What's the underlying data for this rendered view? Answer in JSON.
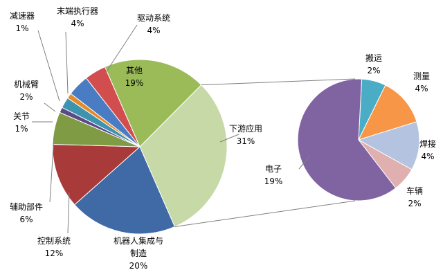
{
  "chart_data": [
    {
      "type": "pie",
      "slices": [
        {
          "label": "下游应用",
          "value": 31,
          "value_label": "31%",
          "color": "#C6D9A7"
        },
        {
          "label": "机器人集成与制造",
          "value": 20,
          "value_label": "20%",
          "color": "#3F6AA6"
        },
        {
          "label": "控制系统",
          "value": 12,
          "value_label": "12%",
          "color": "#A83A3A"
        },
        {
          "label": "辅助部件",
          "value": 6,
          "value_label": "6%",
          "color": "#7F9C45"
        },
        {
          "label": "关节",
          "value": 1,
          "value_label": "1%",
          "color": "#5B4A86"
        },
        {
          "label": "机械臂",
          "value": 2,
          "value_label": "2%",
          "color": "#3E94AE"
        },
        {
          "label": "减速器",
          "value": 1,
          "value_label": "1%",
          "color": "#E38C2C"
        },
        {
          "label": "末端执行器",
          "value": 4,
          "value_label": "4%",
          "color": "#4A7CC4"
        },
        {
          "label": "驱动系统",
          "value": 4,
          "value_label": "4%",
          "color": "#D24E4E"
        },
        {
          "label": "其他",
          "value": 19,
          "value_label": "19%",
          "color": "#9BBB59"
        }
      ]
    },
    {
      "type": "pie",
      "slices": [
        {
          "label": "搬运",
          "value": 2,
          "value_label": "2%",
          "color": "#4BACC6"
        },
        {
          "label": "测量",
          "value": 4,
          "value_label": "4%",
          "color": "#F79646"
        },
        {
          "label": "焊接",
          "value": 4,
          "value_label": "4%",
          "color": "#B3C3E0"
        },
        {
          "label": "车辆",
          "value": 2,
          "value_label": "2%",
          "color": "#E0AFB0"
        },
        {
          "label": "电子",
          "value": 19,
          "value_label": "19%",
          "color": "#8064A2"
        }
      ]
    }
  ]
}
